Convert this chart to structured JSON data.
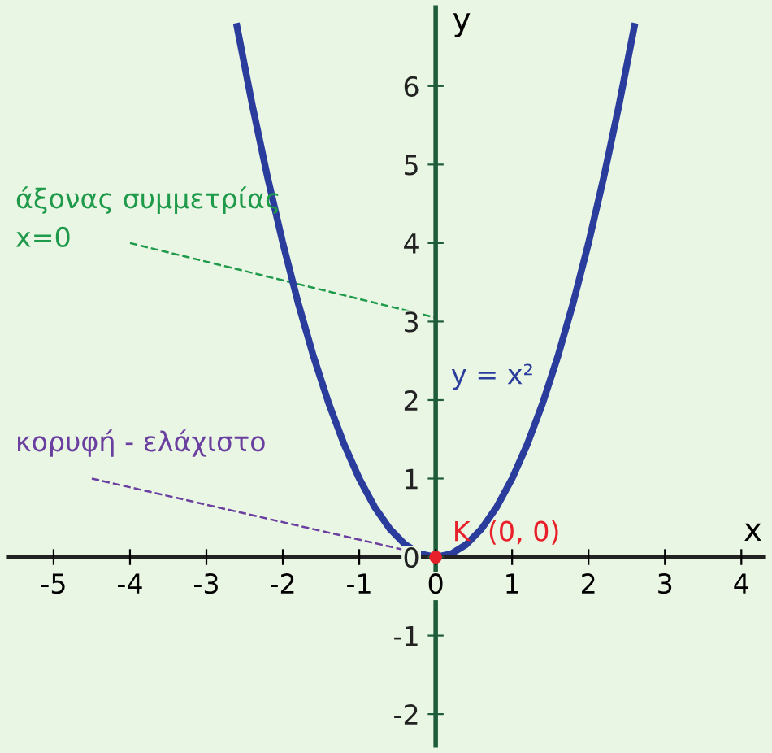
{
  "chart_data": {
    "type": "line",
    "xlabel": "x",
    "ylabel": "y",
    "xlim": [
      -5.6,
      4.3
    ],
    "ylim": [
      -2.4,
      7
    ],
    "xticks": [
      -5,
      -4,
      -3,
      -2,
      -1,
      0,
      1,
      2,
      3,
      4
    ],
    "yticks": [
      -2,
      -1,
      0,
      1,
      2,
      3,
      4,
      5,
      6
    ],
    "grid": false,
    "legend": false,
    "line_style": "solid",
    "series": [
      {
        "name": "y = x²",
        "color": "#2b3d9c",
        "x": [
          -2.6,
          -2.4,
          -2.2,
          -2.0,
          -1.8,
          -1.6,
          -1.4,
          -1.2,
          -1.0,
          -0.8,
          -0.6,
          -0.4,
          -0.2,
          0.0,
          0.2,
          0.4,
          0.6,
          0.8,
          1.0,
          1.2,
          1.4,
          1.6,
          1.8,
          2.0,
          2.2,
          2.4,
          2.6
        ],
        "values": [
          6.76,
          5.76,
          4.84,
          4.0,
          3.24,
          2.56,
          1.96,
          1.44,
          1.0,
          0.64,
          0.36,
          0.16,
          0.04,
          0.0,
          0.04,
          0.16,
          0.36,
          0.64,
          1.0,
          1.44,
          1.96,
          2.56,
          3.24,
          4.0,
          4.84,
          5.76,
          6.76
        ]
      },
      {
        "color": "#e8202a",
        "type": "scatter",
        "x": [
          0
        ],
        "values": [
          0
        ]
      }
    ],
    "annotations": [
      "άξονας συμμετρίας\nx=0",
      {
        "text": "κορυφή - ελάχιστο",
        "x": 0,
        "y": 0
      },
      {
        "text": "K  (0, 0)",
        "x": 0,
        "y": 0
      }
    ]
  }
}
